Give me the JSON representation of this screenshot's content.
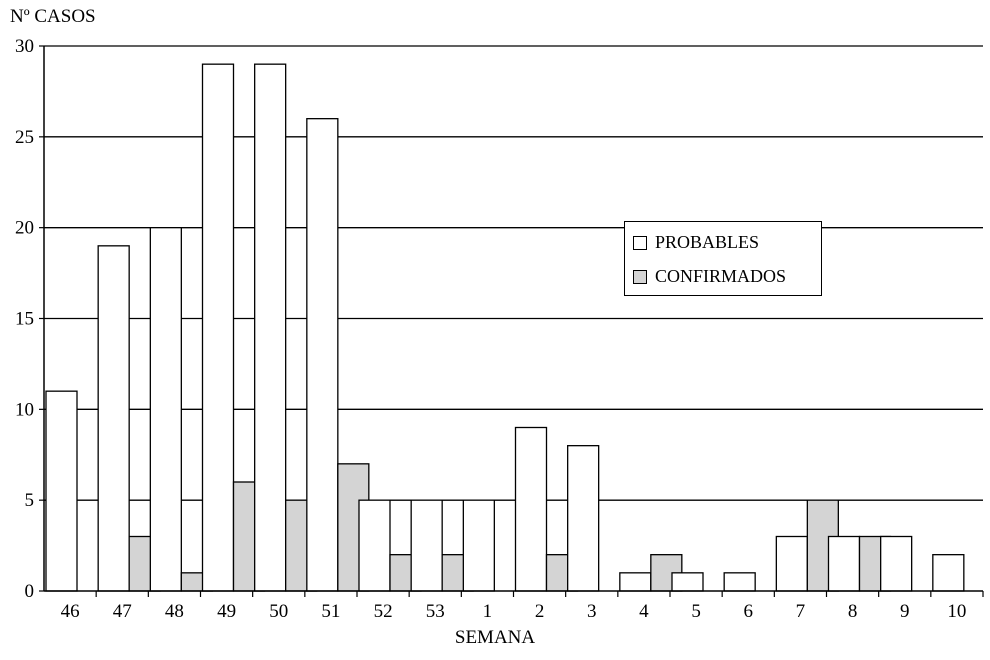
{
  "chart_data": {
    "type": "bar",
    "title": "",
    "ylabel": "Nº CASOS",
    "xlabel": "SEMANA",
    "ylim": [
      0,
      30
    ],
    "yticks": [
      0,
      5,
      10,
      15,
      20,
      25,
      30
    ],
    "grid": true,
    "legend_position": "center-right",
    "categories": [
      "46",
      "47",
      "48",
      "49",
      "50",
      "51",
      "52",
      "53",
      "1",
      "2",
      "3",
      "4",
      "5",
      "6",
      "7",
      "8",
      "9",
      "10"
    ],
    "series": [
      {
        "name": "PROBABLES",
        "color": "#ffffff",
        "values": [
          11,
          19,
          20,
          29,
          29,
          26,
          5,
          5,
          5,
          9,
          8,
          1,
          1,
          1,
          3,
          3,
          3,
          2
        ]
      },
      {
        "name": "CONFIRMADOS",
        "color": "#d4d4d4",
        "values": [
          0,
          3,
          1,
          6,
          5,
          7,
          2,
          2,
          0,
          2,
          0,
          2,
          0,
          0,
          5,
          3,
          0,
          0
        ]
      }
    ]
  }
}
